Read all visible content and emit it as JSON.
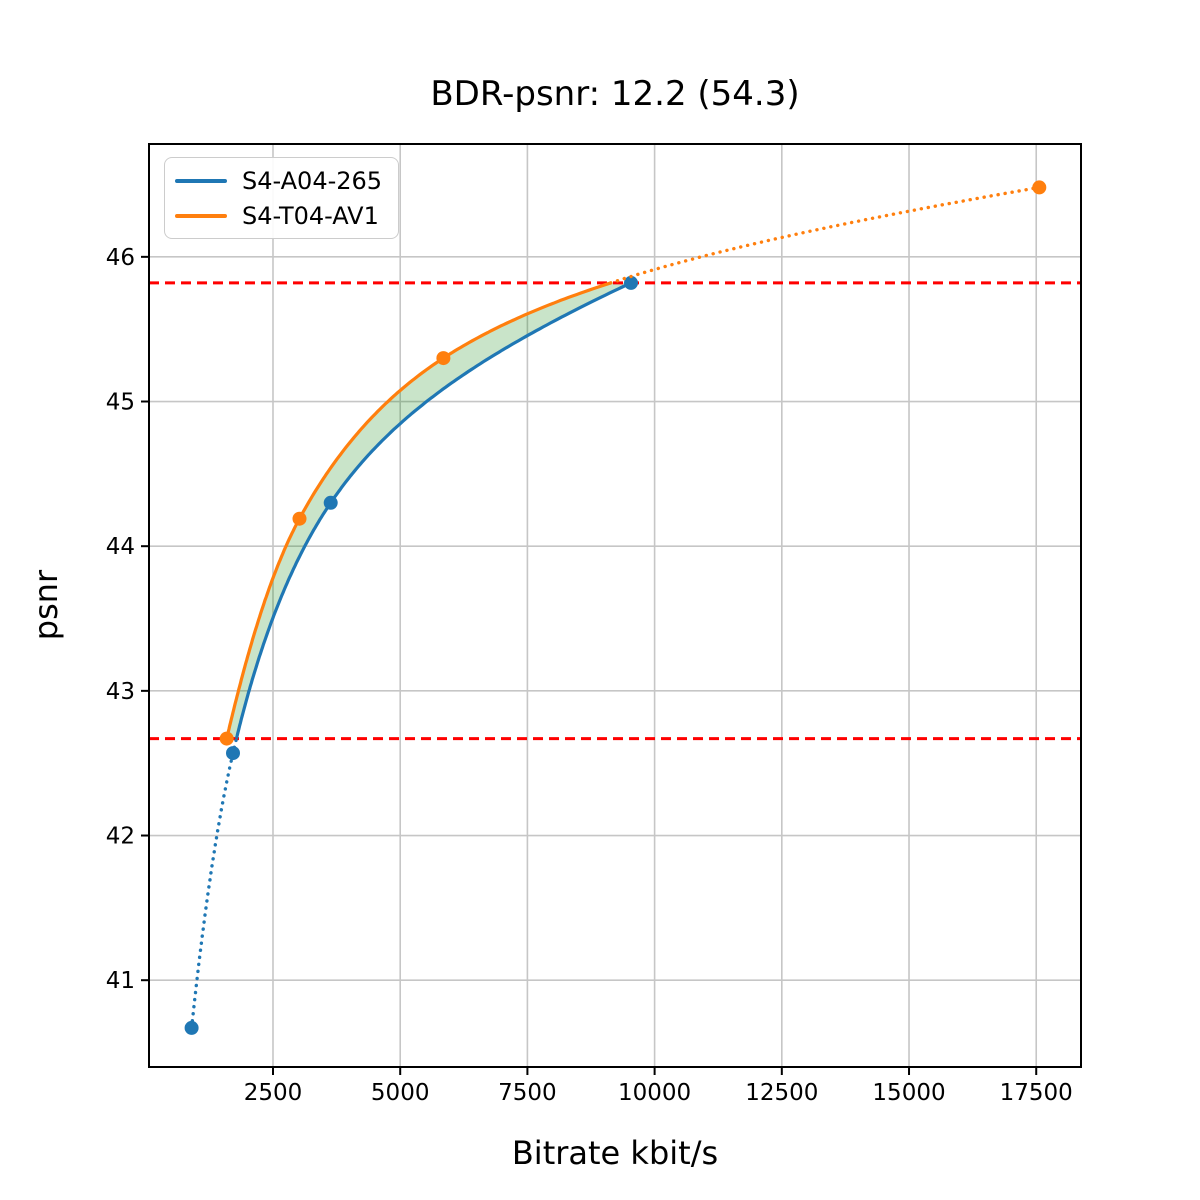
{
  "chart_data": {
    "type": "line",
    "title": "BDR-psnr: 12.2 (54.3)",
    "xlabel": "Bitrate kbit/s",
    "ylabel": "psnr",
    "xlim": [
      63,
      18380
    ],
    "ylim": [
      40.4,
      46.78
    ],
    "x_ticks": [
      2500,
      5000,
      7500,
      10000,
      12500,
      15000,
      17500
    ],
    "y_ticks": [
      41,
      42,
      43,
      44,
      45,
      46
    ],
    "grid": true,
    "legend_position": "upper-left",
    "series": [
      {
        "name": "S4-A04-265",
        "color": "#1f77b4",
        "points": [
          [
            900,
            40.67
          ],
          [
            1714,
            42.57
          ],
          [
            3634,
            44.3
          ],
          [
            9536,
            45.82
          ]
        ]
      },
      {
        "name": "S4-T04-AV1",
        "color": "#ff7f0e",
        "points": [
          [
            1590,
            42.67
          ],
          [
            3020,
            44.19
          ],
          [
            5848,
            45.3
          ],
          [
            17561,
            46.48
          ]
        ]
      }
    ],
    "overlap_lines": {
      "color": "#ff0000",
      "style": "dashed",
      "y_values": [
        42.67,
        45.82
      ]
    },
    "fill_between": {
      "color": "#008000",
      "opacity": 0.21
    }
  }
}
